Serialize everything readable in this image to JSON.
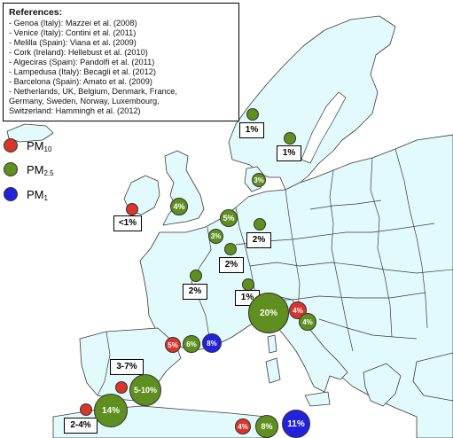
{
  "references": {
    "title": "References:",
    "items": [
      "- Genoa (Italy): Mazzei et al. (2008)",
      "- Venice (Italy): Contini et al. (2011)",
      "- Melilla (Spain): Viana et al. (2009)",
      "- Cork (Ireland): Hellebust et al. (2010)",
      "- Algeciras (Spain): Pandolfi et al. (2011)",
      "- Lampedusa (Italy): Becagli et al. (2012)",
      "- Barcelona (Spain): Amato et al. (2009)",
      "- Netherlands, UK, Belgium, Denmark, France,",
      "Germany, Sweden, Norway, Luxembourg,",
      "Switzerland: Hammingh et al. (2012)"
    ]
  },
  "legend": [
    {
      "base": "PM",
      "sub": "10",
      "color": "#d9352b"
    },
    {
      "base": "PM",
      "sub": "2.5",
      "color": "#5f8f1e"
    },
    {
      "base": "PM",
      "sub": "1",
      "color": "#2222dd"
    }
  ],
  "colors": {
    "pm10": "#d9352b",
    "pm25": "#5f8f1e",
    "pm1": "#2222dd",
    "land": "#e2fafb"
  },
  "points": [
    {
      "site": "Norway",
      "pm": "PM2.5",
      "value": "1%"
    },
    {
      "site": "Sweden",
      "pm": "PM2.5",
      "value": "1%"
    },
    {
      "site": "Denmark",
      "pm": "PM2.5",
      "value": "3%"
    },
    {
      "site": "Cork",
      "pm": "PM10",
      "value": "<1%"
    },
    {
      "site": "UK",
      "pm": "PM2.5",
      "value": "4%"
    },
    {
      "site": "Netherlands",
      "pm": "PM2.5",
      "value": "5%"
    },
    {
      "site": "Belgium",
      "pm": "PM2.5",
      "value": "3%"
    },
    {
      "site": "Germany",
      "pm": "PM2.5",
      "value": "2%"
    },
    {
      "site": "Luxembourg",
      "pm": "PM2.5",
      "value": "2%"
    },
    {
      "site": "France",
      "pm": "PM2.5",
      "value": "2%"
    },
    {
      "site": "Switzerland",
      "pm": "PM2.5",
      "value": "1%"
    },
    {
      "site": "Genoa",
      "pm": "PM2.5",
      "value": "20%"
    },
    {
      "site": "Venice",
      "pm": "PM10",
      "value": "4%"
    },
    {
      "site": "Venice",
      "pm": "PM2.5",
      "value": "4%"
    },
    {
      "site": "Barcelona",
      "pm": "PM10",
      "value": "5%"
    },
    {
      "site": "Barcelona",
      "pm": "PM2.5",
      "value": "6%"
    },
    {
      "site": "Barcelona",
      "pm": "PM1",
      "value": "8%"
    },
    {
      "site": "Algeciras",
      "pm": "PM10",
      "value": "3-7%"
    },
    {
      "site": "Algeciras",
      "pm": "PM2.5",
      "value": "5-10%"
    },
    {
      "site": "Melilla",
      "pm": "PM10",
      "value": "2-4%"
    },
    {
      "site": "Melilla",
      "pm": "PM2.5",
      "value": "14%"
    },
    {
      "site": "Lampedusa",
      "pm": "PM10",
      "value": "4%"
    },
    {
      "site": "Lampedusa",
      "pm": "PM2.5",
      "value": "8%"
    },
    {
      "site": "Lampedusa",
      "pm": "PM1",
      "value": "11%"
    }
  ]
}
